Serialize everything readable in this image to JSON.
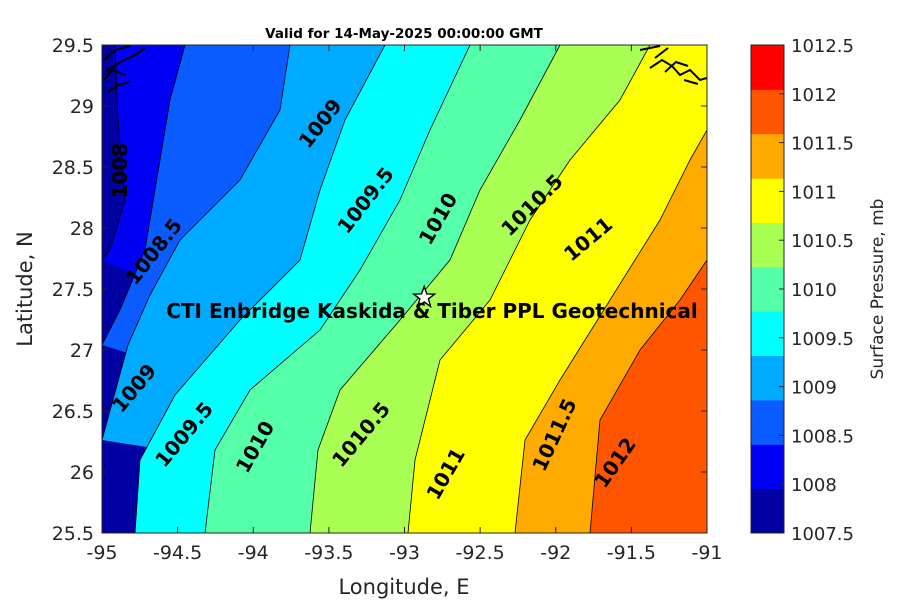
{
  "title": "Valid for 14-May-2025 00:00:00 GMT",
  "xlabel": "Longitude, E",
  "ylabel": "Latitude, N",
  "x_ticks": [
    "-95",
    "-94.5",
    "-94",
    "-93.5",
    "-93",
    "-92.5",
    "-92",
    "-91.5",
    "-91"
  ],
  "y_ticks": [
    "25.5",
    "26",
    "26.5",
    "27",
    "27.5",
    "28",
    "28.5",
    "29",
    "29.5"
  ],
  "xlim": [
    -95,
    -91
  ],
  "ylim": [
    25.5,
    29.5
  ],
  "colorbar": {
    "label": "Surface Pressure, mb",
    "ticks": [
      "1007.5",
      "1008",
      "1008.5",
      "1009",
      "1009.5",
      "1010",
      "1010.5",
      "1011",
      "1011.5",
      "1012",
      "1012.5"
    ],
    "colors": [
      "#0000a3",
      "#0000f5",
      "#0a5cff",
      "#00aaff",
      "#00ffff",
      "#55ffaa",
      "#aaff55",
      "#ffff00",
      "#ffaa00",
      "#ff5500",
      "#ff0000"
    ]
  },
  "contour_labels": [
    {
      "text": "1008",
      "lon": -94.87,
      "lat": 28.47,
      "angle": -90
    },
    {
      "text": "1008.5",
      "lon": -94.65,
      "lat": 27.8,
      "angle": -52
    },
    {
      "text": "1009",
      "lon": -93.55,
      "lat": 28.85,
      "angle": -52
    },
    {
      "text": "1009",
      "lon": -94.78,
      "lat": 26.68,
      "angle": -50
    },
    {
      "text": "1009.5",
      "lon": -93.25,
      "lat": 28.22,
      "angle": -52
    },
    {
      "text": "1009.5",
      "lon": -94.45,
      "lat": 26.3,
      "angle": -50
    },
    {
      "text": "1010",
      "lon": -92.77,
      "lat": 28.07,
      "angle": -60
    },
    {
      "text": "1010",
      "lon": -93.98,
      "lat": 26.2,
      "angle": -60
    },
    {
      "text": "1010.5",
      "lon": -92.15,
      "lat": 28.18,
      "angle": -45
    },
    {
      "text": "1010.5",
      "lon": -93.28,
      "lat": 26.3,
      "angle": -50
    },
    {
      "text": "1011",
      "lon": -91.78,
      "lat": 27.9,
      "angle": -40
    },
    {
      "text": "1011",
      "lon": -92.72,
      "lat": 25.98,
      "angle": -60
    },
    {
      "text": "1011.5",
      "lon": -92.0,
      "lat": 26.3,
      "angle": -65
    },
    {
      "text": "1012",
      "lon": -91.6,
      "lat": 26.07,
      "angle": -55
    }
  ],
  "site": {
    "label": "CTI Enbridge  Kaskida & Tiber PPL Geotechnical",
    "marker_lon": -92.87,
    "marker_lat": 27.43
  }
}
